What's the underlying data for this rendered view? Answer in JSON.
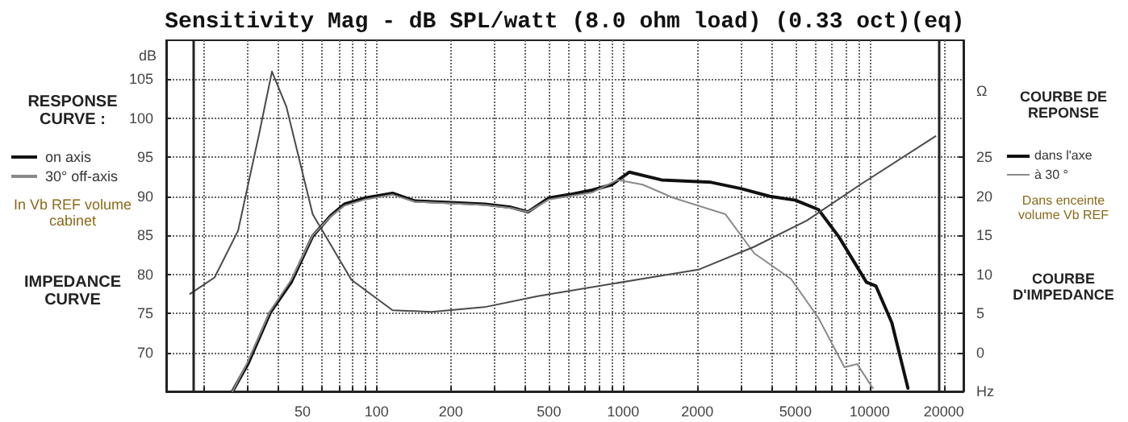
{
  "chart_data": {
    "type": "line",
    "title": "Sensitivity Mag - dB SPL/watt (8.0 ohm load) (0.33 oct)(eq)",
    "xlabel": "Hz",
    "ylabel": "dB",
    "y2label": "Ω",
    "log": "x",
    "grid": true,
    "legend": "left",
    "marker": "none",
    "line_style": "solid",
    "xlim": [
      14,
      24000
    ],
    "ylim": [
      65,
      110
    ],
    "y2lim": [
      -5,
      40
    ],
    "xticks": [
      {
        "value": 20,
        "label": null
      },
      {
        "value": 30,
        "label": null
      },
      {
        "value": 40,
        "label": null
      },
      50,
      {
        "value": 60,
        "label": null
      },
      {
        "value": 70,
        "label": null
      },
      {
        "value": 80,
        "label": null
      },
      {
        "value": 90,
        "label": null
      },
      100,
      200,
      {
        "value": 300,
        "label": null
      },
      {
        "value": 400,
        "label": null
      },
      500,
      {
        "value": 600,
        "label": null
      },
      {
        "value": 700,
        "label": null
      },
      {
        "value": 800,
        "label": null
      },
      {
        "value": 900,
        "label": null
      },
      1000,
      2000,
      {
        "value": 3000,
        "label": null
      },
      {
        "value": 4000,
        "label": null
      },
      5000,
      {
        "value": 6000,
        "label": null
      },
      {
        "value": 7000,
        "label": null
      },
      {
        "value": 8000,
        "label": null
      },
      {
        "value": 9000,
        "label": null
      },
      10000,
      20000
    ],
    "yticks": [
      70,
      75,
      80,
      85,
      90,
      95,
      100,
      105
    ],
    "y2ticks": [
      0,
      5,
      10,
      15,
      20,
      25
    ],
    "ref_lines": [
      {
        "axis": "x",
        "value": 18,
        "color": "#222222"
      },
      {
        "axis": "x",
        "value": 19000,
        "color": "#222222"
      }
    ],
    "series": [
      {
        "name": "on axis",
        "color": "#111111",
        "x": [
          26,
          30,
          37,
          45,
          55,
          65,
          74,
          90,
          116,
          143,
          200,
          274,
          350,
          411,
          500,
          600,
          750,
          900,
          1060,
          1430,
          2270,
          3000,
          3930,
          5000,
          6200,
          7500,
          9700,
          10600,
          12300,
          14300
        ],
        "values": [
          65,
          68.5,
          75.1,
          79,
          84.9,
          87.5,
          89,
          89.8,
          90.4,
          89.4,
          89.2,
          89,
          88.6,
          88,
          89.8,
          90.2,
          90.8,
          91.5,
          93.1,
          92.1,
          91.8,
          91,
          90,
          89.5,
          88.3,
          84.8,
          79,
          78.5,
          73.8,
          65.4
        ]
      },
      {
        "name": "30° off-axis",
        "color": "#8a8a8a",
        "x": [
          26,
          30,
          37,
          45,
          55,
          65,
          74,
          90,
          116,
          143,
          200,
          274,
          350,
          411,
          500,
          600,
          750,
          950,
          1200,
          1600,
          2600,
          3400,
          4800,
          6200,
          7900,
          8900,
          10300
        ],
        "values": [
          65,
          68.8,
          75.3,
          79.3,
          85,
          87.4,
          88.8,
          89.6,
          90.2,
          89.3,
          89.1,
          88.9,
          88.5,
          88,
          89.6,
          90,
          90.5,
          92.1,
          91.5,
          89.8,
          87.7,
          82.7,
          79.4,
          74.4,
          68.1,
          68.5,
          65.4
        ]
      },
      {
        "color": "#4a4a4a",
        "axis": "y2",
        "x": [
          17.5,
          22,
          27.4,
          33.4,
          37.6,
          43,
          55,
          79,
          116,
          167,
          274,
          450,
          1180,
          2020,
          3380,
          5560,
          9160,
          18500
        ],
        "values": [
          7.5,
          9.6,
          15.6,
          28.1,
          36,
          31.5,
          17.7,
          9.3,
          5.4,
          5.2,
          5.8,
          7.2,
          9.4,
          10.6,
          13.5,
          16.9,
          21.5,
          27.7
        ]
      }
    ],
    "annotations": [
      "RESPONSE CURVE :",
      "In Vb REF volume cabinet",
      "IMPEDANCE CURVE",
      "COURBE DE REPONSE",
      "dans l'axe",
      "à 30 °",
      "Dans enceinte volume Vb REF",
      "COURBE D'IMPEDANCE"
    ]
  }
}
